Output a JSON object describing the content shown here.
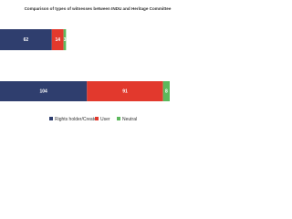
{
  "chart_data": {
    "type": "bar",
    "orientation": "horizontal",
    "stacked": true,
    "title": "Comparison of types of witnesses between INDU and Heritage Committee",
    "categories": [
      null,
      null
    ],
    "series": [
      {
        "name": "Rights holder/Creator",
        "color": "#2f3e6e",
        "values": [
          62,
          104
        ]
      },
      {
        "name": "User",
        "color": "#e2392d",
        "values": [
          14,
          91
        ]
      },
      {
        "name": "Neutral",
        "color": "#5cb85c",
        "values": [
          3,
          8
        ]
      }
    ],
    "legend": "bottom"
  }
}
